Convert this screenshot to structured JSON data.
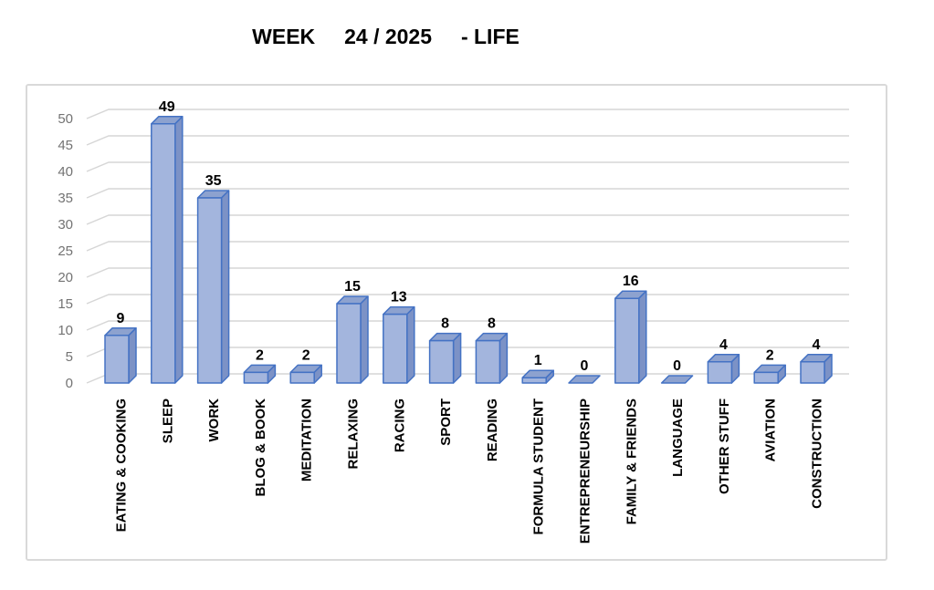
{
  "chart_data": {
    "type": "bar",
    "style": "3d-bar",
    "title": "WEEK     24 / 2025     - LIFE",
    "categories": [
      "EATING & COOKING",
      "SLEEP",
      "WORK",
      "BLOG & BOOK",
      "MEDITATION",
      "RELAXING",
      "RACING",
      "SPORT",
      "READING",
      "FORMULA STUDENT",
      "ENTREPRENEURSHIP",
      "FAMILY & FRIENDS",
      "LANGUAGE",
      "OTHER STUFF",
      "AVIATION",
      "CONSTRUCTION"
    ],
    "values": [
      9,
      49,
      35,
      2,
      2,
      15,
      13,
      8,
      8,
      1,
      0,
      16,
      0,
      4,
      2,
      4
    ],
    "data_labels": [
      "9",
      "49",
      "35",
      "2",
      "2",
      "15",
      "13",
      "8",
      "8",
      "1",
      "0",
      "16",
      "0",
      "4",
      "2",
      "4"
    ],
    "xlabel": "",
    "ylabel": "",
    "ylim": [
      0,
      50
    ],
    "yticks": [
      0,
      5,
      10,
      15,
      20,
      25,
      30,
      35,
      40,
      45,
      50
    ],
    "grid": true,
    "legend": false,
    "category_label_rotation": "vertical-bottom-to-top",
    "colors": {
      "bar_front": "#A3B5DD",
      "bar_top": "#8DA2CF",
      "bar_side": "#7C92C6",
      "bar_outline": "#4472C4",
      "gridline": "#D6D6D6",
      "tick_label": "#737373",
      "data_label": "#000000",
      "category_label": "#000000",
      "frame_border": "#D9D9D9",
      "background": "#FFFFFF"
    }
  }
}
